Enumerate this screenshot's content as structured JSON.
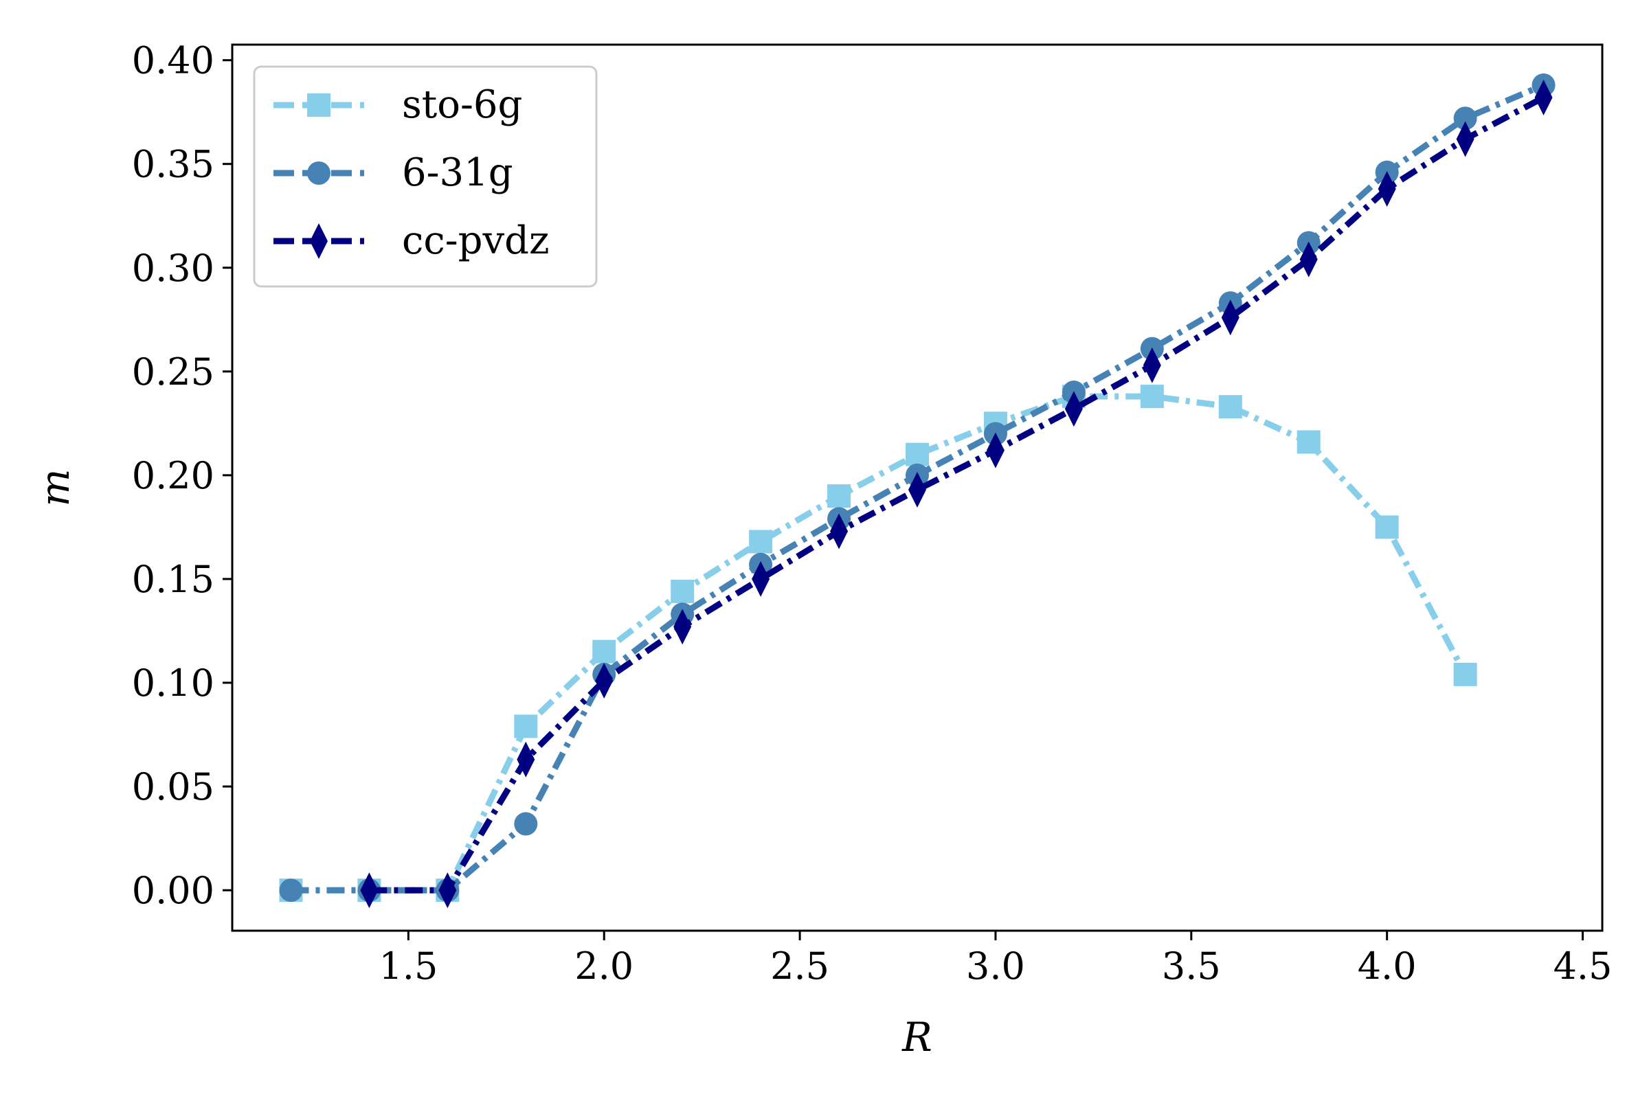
{
  "chart_data": {
    "type": "line",
    "title": "",
    "xlabel": "R",
    "ylabel": "m",
    "xlim": [
      1.05,
      4.55
    ],
    "ylim": [
      -0.0195,
      0.4075
    ],
    "xticks": [
      "1.5",
      "2.0",
      "2.5",
      "3.0",
      "3.5",
      "4.0",
      "4.5"
    ],
    "yticks": [
      "0.00",
      "0.05",
      "0.10",
      "0.15",
      "0.20",
      "0.25",
      "0.30",
      "0.35",
      "0.40"
    ],
    "grid": false,
    "legend_position": "upper-left",
    "series": [
      {
        "name": "sto-6g",
        "color": "#87CEEB",
        "marker": "square",
        "x": [
          1.2,
          1.4,
          1.6,
          1.8,
          2.0,
          2.2,
          2.4,
          2.6,
          2.8,
          3.0,
          3.2,
          3.4,
          3.6,
          3.8,
          4.0,
          4.2
        ],
        "y": [
          0.0,
          0.0,
          0.0,
          0.079,
          0.115,
          0.144,
          0.168,
          0.19,
          0.21,
          0.225,
          0.238,
          0.238,
          0.233,
          0.216,
          0.175,
          0.104
        ]
      },
      {
        "name": "6-31g",
        "color": "#4682B4",
        "marker": "circle",
        "x": [
          1.2,
          1.4,
          1.6,
          1.8,
          2.0,
          2.2,
          2.4,
          2.6,
          2.8,
          3.0,
          3.2,
          3.4,
          3.6,
          3.8,
          4.0,
          4.2,
          4.4
        ],
        "y": [
          0.0,
          0.0,
          0.0,
          0.032,
          0.104,
          0.133,
          0.157,
          0.179,
          0.2,
          0.22,
          0.24,
          0.261,
          0.283,
          0.312,
          0.346,
          0.372,
          0.388
        ]
      },
      {
        "name": "cc-pvdz",
        "color": "#000080",
        "marker": "thin-diamond",
        "x": [
          1.4,
          1.6,
          1.8,
          2.0,
          2.2,
          2.4,
          2.6,
          2.8,
          3.0,
          3.2,
          3.4,
          3.6,
          3.8,
          4.0,
          4.2,
          4.4
        ],
        "y": [
          0.0,
          0.0,
          0.063,
          0.101,
          0.127,
          0.15,
          0.173,
          0.193,
          0.212,
          0.232,
          0.253,
          0.276,
          0.304,
          0.338,
          0.362,
          0.382
        ]
      }
    ]
  }
}
